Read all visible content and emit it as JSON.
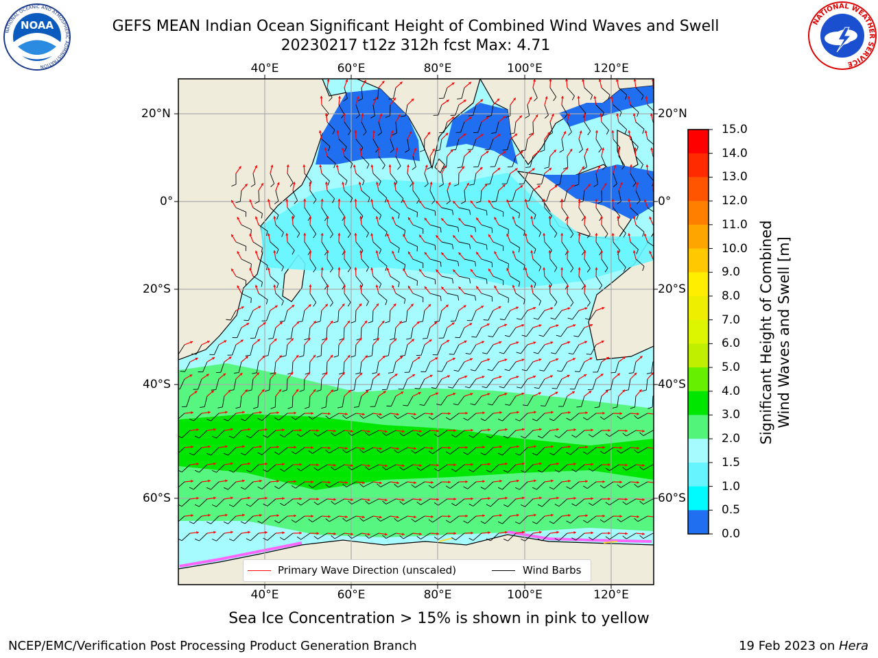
{
  "header": {
    "title_line1": "GEFS MEAN Indian Ocean Significant Height of Combined Wind Waves and Swell",
    "title_line2": "20230217 t12z 312h fcst   Max: 4.71"
  },
  "logos": {
    "noaa": {
      "text": "NOAA",
      "ring_text": "NATIONAL OCEANIC AND ATMOSPHERIC ADMINISTRATION",
      "ring_text_bottom": "U.S. DEPARTMENT OF COMMERCE"
    },
    "nws": {
      "ring_text": "NATIONAL WEATHER SERVICE"
    }
  },
  "map": {
    "lon_labels": [
      "40°E",
      "60°E",
      "80°E",
      "100°E",
      "120°E"
    ],
    "lat_labels": [
      "20°N",
      "0°",
      "20°S",
      "40°S",
      "60°S"
    ],
    "colors": {
      "land": "#efecdc",
      "ocean_0_5": "#1f6ff0",
      "ocean_1_5": "#00e6ff",
      "ocean_2_0": "#66f5ff",
      "ocean_2_5": "#a6fbff",
      "ocean_3_0": "#52f57a",
      "ocean_4_0": "#00e600",
      "ice": "#ff66ff",
      "wave_arrow": "#ff0000",
      "wind_barb": "#000000"
    }
  },
  "colorbar": {
    "title_line1": "Significant Height of Combined",
    "title_line2": "Wind Waves and Swell [m]",
    "ticks": [
      "15.0",
      "14.0",
      "13.0",
      "12.0",
      "11.0",
      "10.0",
      "9.0",
      "8.0",
      "7.0",
      "6.0",
      "5.0",
      "4.0",
      "3.0",
      "2.0",
      "1.5",
      "1.0",
      "0.5",
      "0.0"
    ],
    "colors_top_to_bottom": [
      "#ff0000",
      "#ff2a00",
      "#ff5500",
      "#ff7f00",
      "#ffa500",
      "#ffc800",
      "#ffee00",
      "#eeee00",
      "#dcf500",
      "#c0f000",
      "#66f000",
      "#00e600",
      "#52f57a",
      "#a6fbff",
      "#66f5ff",
      "#00fbff",
      "#1f6ff0",
      "#0000ff"
    ]
  },
  "legend": {
    "wave_label": "Primary Wave Direction (unscaled)",
    "wind_label": "Wind Barbs"
  },
  "footer": {
    "note": "Sea Ice Concentration > 15% is shown in pink to yellow",
    "credit": "NCEP/EMC/Verification Post Processing Product Generation Branch",
    "date_prefix": "19 Feb 2023 on ",
    "date_machine": "Hera"
  }
}
